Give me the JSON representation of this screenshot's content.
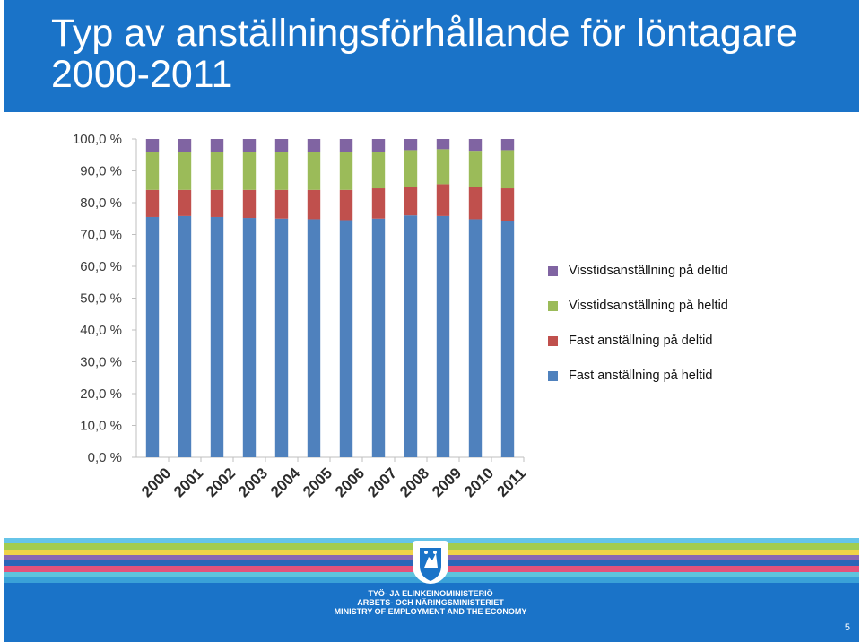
{
  "slide": {
    "title": "Typ av anställningsförhållande för löntagare 2000-2011",
    "page_number": "5"
  },
  "footer": {
    "ministry_lines": [
      "TYÖ- JA ELINKEINOMINISTERIÖ",
      "ARBETS- OCH NÄRINGSMINISTERIET",
      "MINISTRY OF EMPLOYMENT AND THE ECONOMY"
    ],
    "stripe_colors": [
      "#66c4e8",
      "#a3cc4e",
      "#f0d348",
      "#8a67b3",
      "#2b66b8",
      "#e4527b",
      "#5fc3dd",
      "#3aa1d8"
    ]
  },
  "chart_data": {
    "type": "bar",
    "stacked": true,
    "categories": [
      "2000",
      "2001",
      "2002",
      "2003",
      "2004",
      "2005",
      "2006",
      "2007",
      "2008",
      "2009",
      "2010",
      "2011"
    ],
    "series": [
      {
        "name": "Fast anställning på heltid",
        "color": "#4f81bd",
        "values": [
          75.5,
          75.8,
          75.5,
          75.2,
          75.0,
          74.8,
          74.5,
          75.0,
          76.0,
          75.8,
          74.8,
          74.2
        ]
      },
      {
        "name": "Fast anställning på deltid",
        "color": "#c0504d",
        "values": [
          8.5,
          8.2,
          8.5,
          8.8,
          9.0,
          9.2,
          9.5,
          9.5,
          9.0,
          10.0,
          10.0,
          10.3
        ]
      },
      {
        "name": "Visstidsanställning på heltid",
        "color": "#9bbb59",
        "values": [
          12.0,
          12.0,
          12.0,
          12.0,
          12.0,
          12.0,
          12.0,
          11.5,
          11.5,
          11.0,
          11.5,
          12.0
        ]
      },
      {
        "name": "Visstidsanställning på deltid",
        "color": "#8064a2",
        "values": [
          4.0,
          4.0,
          4.0,
          4.0,
          4.0,
          4.0,
          4.0,
          4.0,
          3.5,
          3.2,
          3.7,
          3.5
        ]
      }
    ],
    "legend_order": [
      3,
      2,
      1,
      0
    ],
    "yticks": [
      "0,0 %",
      "10,0 %",
      "20,0 %",
      "30,0 %",
      "40,0 %",
      "50,0 %",
      "60,0 %",
      "70,0 %",
      "80,0 %",
      "90,0 %",
      "100,0 %"
    ],
    "ylim": [
      0,
      100
    ],
    "grid": false,
    "legend_position": "right",
    "title": "",
    "xlabel": "",
    "ylabel": ""
  }
}
